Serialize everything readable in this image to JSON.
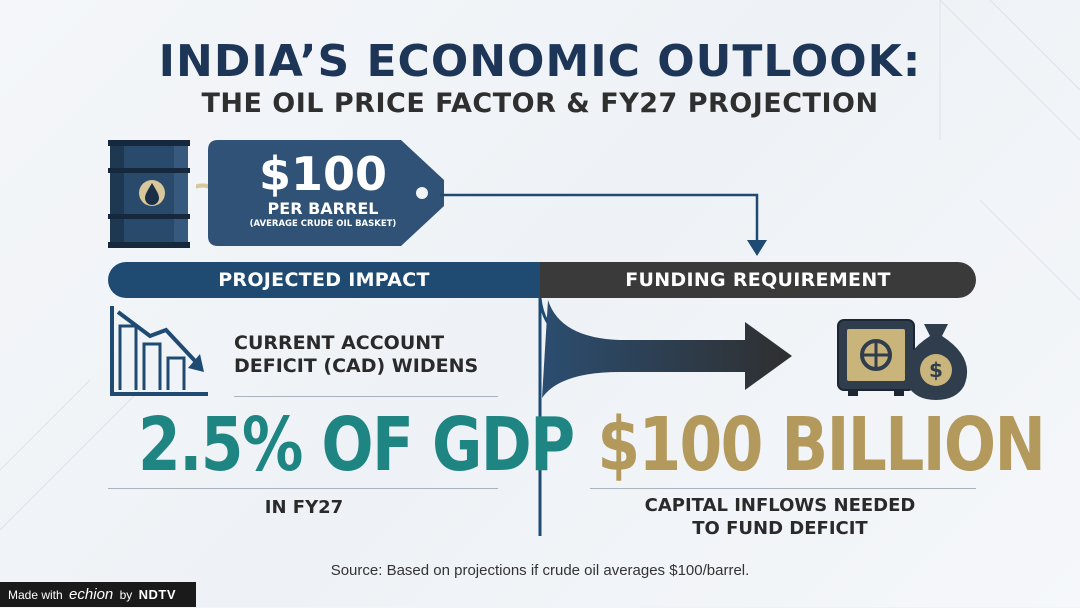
{
  "title": {
    "main": "INDIA’S ECONOMIC OUTLOOK:",
    "subtitle": "THE OIL PRICE FACTOR & FY27 PROJECTION"
  },
  "price_tag": {
    "value": "$100",
    "unit": "PER BARREL",
    "note": "(AVERAGE CRUDE OIL BASKET)"
  },
  "banners": {
    "left": "PROJECTED IMPACT",
    "right": "FUNDING REQUIREMENT"
  },
  "impact": {
    "line1": "CURRENT ACCOUNT",
    "line2": "DEFICIT (CAD) WIDENS",
    "figure": "2.5% OF GDP",
    "period": "IN FY27"
  },
  "funding": {
    "figure": "$100 BILLION",
    "line1": "CAPITAL INFLOWS NEEDED",
    "line2": "TO FUND DEFICIT"
  },
  "source": "Source: Based on projections if crude oil averages $100/barrel.",
  "credit": {
    "made_with": "Made with",
    "brand": "echion",
    "by": "by",
    "partner": "NDTV"
  },
  "colors": {
    "navy": "#1d3556",
    "teal": "#1f8583",
    "gold": "#b39a5c",
    "dark": "#3a3a3a"
  },
  "icons": [
    "oil-barrel-icon",
    "price-tag-icon",
    "declining-chart-icon",
    "safe-icon",
    "money-bag-icon",
    "arrow-icon"
  ]
}
